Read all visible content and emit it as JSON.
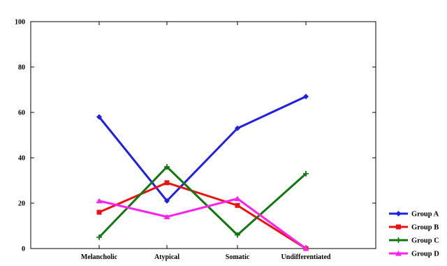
{
  "chart_data": {
    "type": "line",
    "categories": [
      "Melancholic",
      "Atypical",
      "Somatic",
      "Undifferentiated"
    ],
    "ylim": [
      0,
      100
    ],
    "yticks": [
      0,
      20,
      40,
      60,
      80,
      100
    ],
    "grid": false,
    "legend_position": "bottom-right",
    "series": [
      {
        "name": "Group A",
        "color": "#1f1fe6",
        "marker": "diamond",
        "values": [
          58,
          21,
          53,
          67
        ]
      },
      {
        "name": "Group B",
        "color": "#ee1111",
        "marker": "square",
        "values": [
          16,
          29,
          19,
          0
        ]
      },
      {
        "name": "Group C",
        "color": "#117711",
        "marker": "plus",
        "values": [
          5,
          36,
          6,
          33
        ]
      },
      {
        "name": "Group D",
        "color": "#ff22ee",
        "marker": "triangle",
        "values": [
          21,
          14,
          22,
          0
        ]
      }
    ]
  }
}
